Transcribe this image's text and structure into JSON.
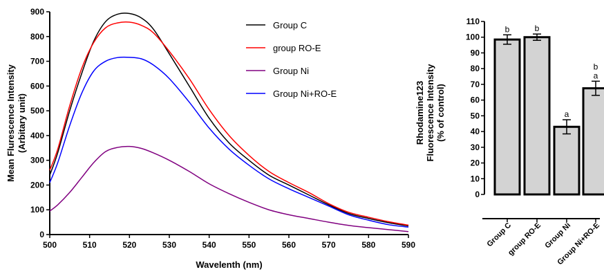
{
  "chart_data": [
    {
      "type": "line",
      "title": "",
      "xlabel": "Wavelenth (nm)",
      "ylabel_lines": [
        "Mean Flurescence Intensity",
        "(Arbitary unit)"
      ],
      "xlim": [
        500,
        590
      ],
      "ylim": [
        0,
        900
      ],
      "xticks": [
        500,
        510,
        520,
        530,
        540,
        550,
        560,
        570,
        580,
        590
      ],
      "yticks": [
        0,
        100,
        200,
        300,
        400,
        500,
        600,
        700,
        800,
        900
      ],
      "legend_position": "top-right",
      "x": [
        500,
        502,
        505,
        508,
        511,
        514,
        517,
        520,
        523,
        526,
        530,
        535,
        540,
        545,
        550,
        555,
        560,
        565,
        570,
        575,
        580,
        585,
        590
      ],
      "series": [
        {
          "name": "Group C",
          "color": "#000000",
          "values": [
            240,
            330,
            500,
            650,
            780,
            860,
            890,
            893,
            875,
            830,
            730,
            600,
            470,
            370,
            300,
            240,
            200,
            160,
            120,
            85,
            65,
            48,
            35
          ]
        },
        {
          "name": "group RO-E",
          "color": "#ff0000",
          "values": [
            260,
            345,
            520,
            670,
            775,
            835,
            855,
            858,
            845,
            815,
            740,
            630,
            505,
            400,
            320,
            255,
            210,
            170,
            125,
            90,
            70,
            52,
            38
          ]
        },
        {
          "name": "Group Ni",
          "color": "#800080",
          "values": [
            95,
            120,
            170,
            230,
            290,
            335,
            352,
            356,
            348,
            330,
            300,
            255,
            205,
            165,
            130,
            100,
            80,
            65,
            50,
            37,
            28,
            20,
            12
          ]
        },
        {
          "name": "Group Ni+RO-E",
          "color": "#0000ff",
          "values": [
            210,
            290,
            440,
            570,
            660,
            700,
            715,
            716,
            710,
            685,
            630,
            535,
            430,
            345,
            280,
            225,
            185,
            150,
            115,
            80,
            58,
            40,
            30
          ]
        }
      ]
    },
    {
      "type": "bar",
      "title": "",
      "xlabel": "",
      "ylabel_lines": [
        "Rhodamine123",
        "Fluorescence Intensity",
        "(% of control)"
      ],
      "ylim": [
        0,
        110
      ],
      "yticks": [
        0,
        10,
        20,
        30,
        40,
        50,
        60,
        70,
        80,
        90,
        100,
        110
      ],
      "categories": [
        "Group C",
        "group RO-E",
        "Group Ni",
        "Group Ni+RO-E"
      ],
      "values": [
        98.5,
        100,
        43,
        67.5
      ],
      "errors": [
        3,
        2,
        4.5,
        4.5
      ],
      "significance": [
        "b",
        "b",
        "a",
        "b\na"
      ],
      "bar_color": "#d3d3d3"
    }
  ]
}
